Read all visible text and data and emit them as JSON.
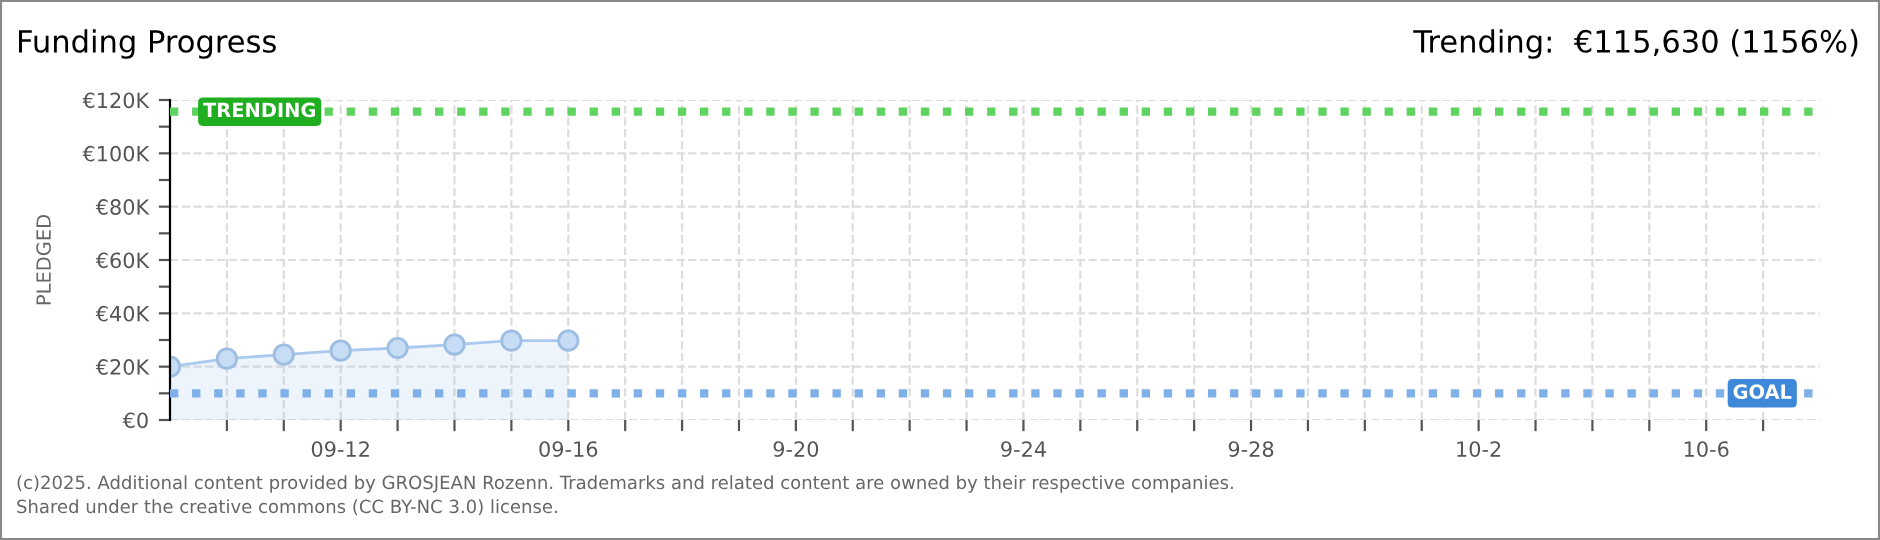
{
  "chart_data": {
    "type": "area",
    "title": "Funding Progress",
    "subtitle": "Trending:  €115,630 (1156%)",
    "ylabel": "PLEDGED",
    "x": [
      "2025-09-09",
      "2025-09-10",
      "2025-09-11",
      "2025-09-12",
      "2025-09-13",
      "2025-09-14",
      "2025-09-15",
      "2025-09-16"
    ],
    "series": [
      {
        "color": "#a9c9ef",
        "values": [
          20000,
          23000,
          24500,
          26000,
          27000,
          28300,
          29800,
          29800
        ]
      }
    ],
    "marker": "circle",
    "grid": true,
    "legend": false,
    "xlim": [
      "2025-09-09",
      "2025-10-08"
    ],
    "xticks": [
      {
        "value": "2025-09-10",
        "label": null
      },
      {
        "value": "2025-09-11",
        "label": null
      },
      {
        "value": "2025-09-12",
        "label": "09-12"
      },
      {
        "value": "2025-09-13",
        "label": null
      },
      {
        "value": "2025-09-14",
        "label": null
      },
      {
        "value": "2025-09-15",
        "label": null
      },
      {
        "value": "2025-09-16",
        "label": "09-16"
      },
      {
        "value": "2025-09-17",
        "label": null
      },
      {
        "value": "2025-09-18",
        "label": null
      },
      {
        "value": "2025-09-19",
        "label": null
      },
      {
        "value": "2025-09-20",
        "label": "9-20"
      },
      {
        "value": "2025-09-21",
        "label": null
      },
      {
        "value": "2025-09-22",
        "label": null
      },
      {
        "value": "2025-09-23",
        "label": null
      },
      {
        "value": "2025-09-24",
        "label": "9-24"
      },
      {
        "value": "2025-09-25",
        "label": null
      },
      {
        "value": "2025-09-26",
        "label": null
      },
      {
        "value": "2025-09-27",
        "label": null
      },
      {
        "value": "2025-09-28",
        "label": "9-28"
      },
      {
        "value": "2025-09-29",
        "label": null
      },
      {
        "value": "2025-09-30",
        "label": null
      },
      {
        "value": "2025-10-01",
        "label": null
      },
      {
        "value": "2025-10-02",
        "label": "10-2"
      },
      {
        "value": "2025-10-03",
        "label": null
      },
      {
        "value": "2025-10-04",
        "label": null
      },
      {
        "value": "2025-10-05",
        "label": null
      },
      {
        "value": "2025-10-06",
        "label": "10-6"
      },
      {
        "value": "2025-10-07",
        "label": null
      }
    ],
    "ylim": [
      0,
      120000
    ],
    "yticks": [
      {
        "value": 0,
        "label": "€0"
      },
      {
        "value": 10000,
        "label": null
      },
      {
        "value": 20000,
        "label": "€20K"
      },
      {
        "value": 30000,
        "label": null
      },
      {
        "value": 40000,
        "label": "€40K"
      },
      {
        "value": 50000,
        "label": null
      },
      {
        "value": 60000,
        "label": "€60K"
      },
      {
        "value": 70000,
        "label": null
      },
      {
        "value": 80000,
        "label": "€80K"
      },
      {
        "value": 90000,
        "label": null
      },
      {
        "value": 100000,
        "label": "€100K"
      },
      {
        "value": 110000,
        "label": null
      },
      {
        "value": 120000,
        "label": "€120K"
      }
    ],
    "ref_lines": [
      {
        "axis": "y",
        "value": 115630,
        "label": "TRENDING",
        "color": "#5fd35f",
        "line_style": "dotted"
      },
      {
        "axis": "y",
        "value": 10000,
        "label": "GOAL",
        "color": "#7fb0e8",
        "line_style": "dotted"
      }
    ],
    "annotations": [
      "(c)2025. Additional content provided by GROSJEAN Rozenn. Trademarks and related content are owned by their respective companies.",
      "Shared under the creative commons (CC BY-NC 3.0) license."
    ]
  }
}
